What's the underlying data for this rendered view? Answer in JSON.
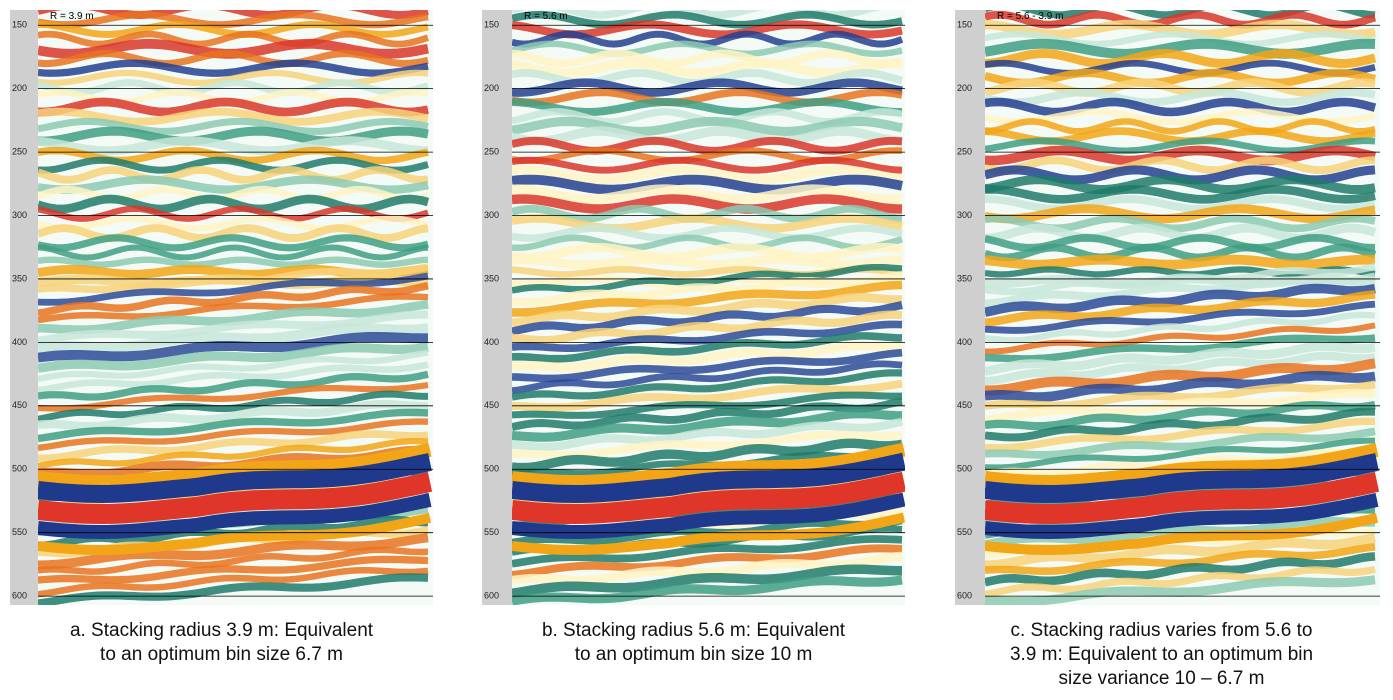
{
  "panels": [
    {
      "label": "R = 3.9 m",
      "ylim": [
        138,
        607
      ],
      "yticks": [
        150,
        200,
        250,
        300,
        350,
        400,
        450,
        500,
        550,
        600
      ],
      "caption": [
        "a. Stacking radius 3.9 m: Equivalent",
        "to an optimum bin size 6.7 m"
      ]
    },
    {
      "label": "R = 5.6 m",
      "ylim": [
        138,
        607
      ],
      "yticks": [
        150,
        200,
        250,
        300,
        350,
        400,
        450,
        500,
        550,
        600
      ],
      "caption": [
        "b. Stacking radius 5.6 m: Equivalent",
        "to an optimum bin size 10 m"
      ]
    },
    {
      "label": "R = 5.6 - 3.9 m",
      "ylim": [
        138,
        607
      ],
      "yticks": [
        150,
        200,
        250,
        300,
        350,
        400,
        450,
        500,
        550,
        600
      ],
      "caption": [
        "c. Stacking radius varies from 5.6 to",
        "3.9 m: Equivalent to an optimum bin",
        "size variance 10 – 6.7 m"
      ]
    }
  ]
}
